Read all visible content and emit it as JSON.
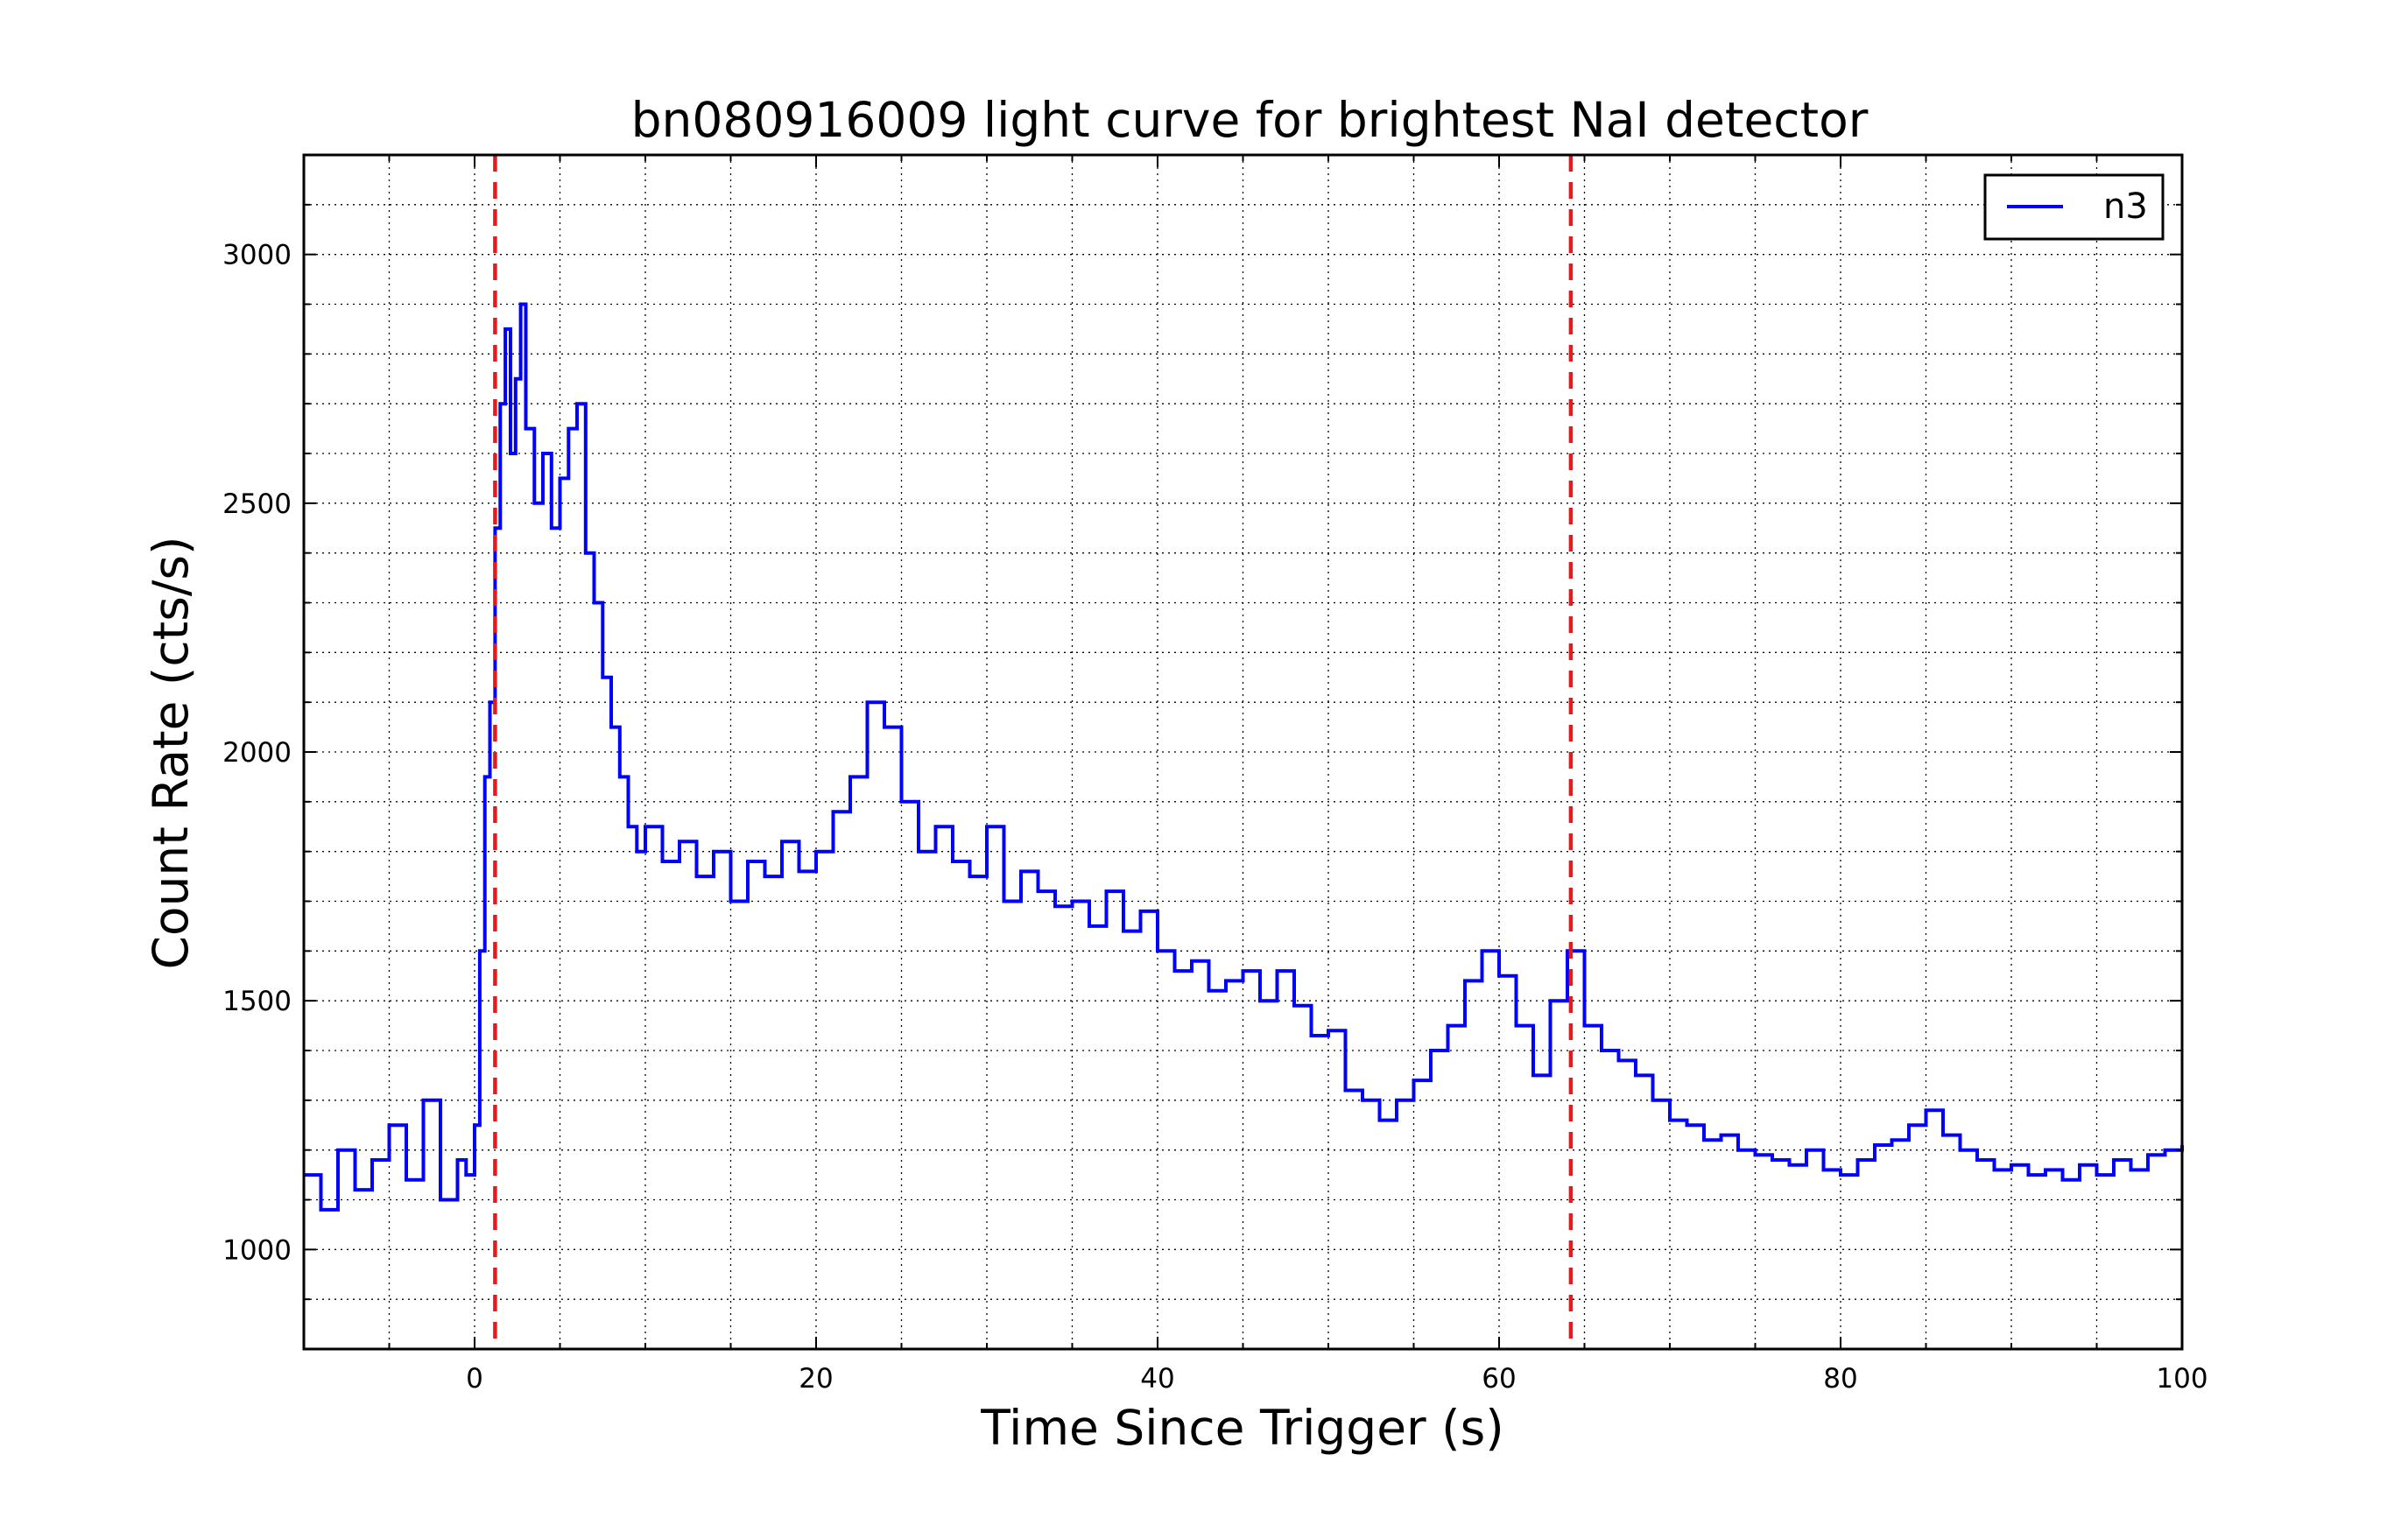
{
  "chart_data": {
    "type": "line",
    "title": "bn080916009 light curve for brightest NaI detector",
    "xlabel": "Time Since Trigger (s)",
    "ylabel": "Count Rate (cts/s)",
    "xlim": [
      -10,
      100
    ],
    "ylim": [
      800,
      3200
    ],
    "x_ticks": [
      0,
      20,
      40,
      60,
      80,
      100
    ],
    "y_ticks": [
      1000,
      1500,
      2000,
      2500,
      3000
    ],
    "x_tick_labels": [
      "0",
      "20",
      "40",
      "60",
      "80",
      "100"
    ],
    "y_tick_labels": [
      "1000",
      "1500",
      "2000",
      "2500",
      "3000"
    ],
    "grid": true,
    "legend_position": "upper-right",
    "colors": {
      "series": "#0000ff",
      "markers": "#e41a1c"
    },
    "series": [
      {
        "name": "n3",
        "x": [
          -10,
          -9,
          -8,
          -7,
          -6,
          -5,
          -4,
          -3,
          -2,
          -1,
          -0.5,
          0,
          0.3,
          0.6,
          0.9,
          1.2,
          1.5,
          1.8,
          2.1,
          2.4,
          2.7,
          3,
          3.5,
          4,
          4.5,
          5,
          5.5,
          6,
          6.5,
          7,
          7.5,
          8,
          8.5,
          9,
          9.5,
          10,
          11,
          12,
          13,
          14,
          15,
          16,
          17,
          18,
          19,
          20,
          21,
          22,
          23,
          24,
          25,
          26,
          27,
          28,
          29,
          30,
          31,
          32,
          33,
          34,
          35,
          36,
          37,
          38,
          39,
          40,
          41,
          42,
          43,
          44,
          45,
          46,
          47,
          48,
          49,
          50,
          51,
          52,
          53,
          54,
          55,
          56,
          57,
          58,
          59,
          60,
          61,
          62,
          63,
          64,
          65,
          66,
          67,
          68,
          69,
          70,
          71,
          72,
          73,
          74,
          75,
          76,
          77,
          78,
          79,
          80,
          81,
          82,
          83,
          84,
          85,
          86,
          87,
          88,
          89,
          90,
          91,
          92,
          93,
          94,
          95,
          96,
          97,
          98,
          99,
          100
        ],
        "y": [
          1150,
          1080,
          1200,
          1120,
          1180,
          1250,
          1140,
          1300,
          1100,
          1180,
          1150,
          1250,
          1600,
          1950,
          2100,
          2450,
          2700,
          2850,
          2600,
          2750,
          2900,
          2650,
          2500,
          2600,
          2450,
          2550,
          2650,
          2700,
          2400,
          2300,
          2150,
          2050,
          1950,
          1850,
          1800,
          1850,
          1780,
          1820,
          1750,
          1800,
          1700,
          1780,
          1750,
          1820,
          1760,
          1800,
          1880,
          1950,
          2100,
          2050,
          1900,
          1800,
          1850,
          1780,
          1750,
          1850,
          1700,
          1760,
          1720,
          1690,
          1700,
          1650,
          1720,
          1640,
          1680,
          1600,
          1560,
          1580,
          1520,
          1540,
          1560,
          1500,
          1560,
          1490,
          1430,
          1440,
          1320,
          1300,
          1260,
          1300,
          1340,
          1400,
          1450,
          1540,
          1600,
          1550,
          1450,
          1350,
          1500,
          1600,
          1450,
          1400,
          1380,
          1350,
          1300,
          1260,
          1250,
          1220,
          1230,
          1200,
          1190,
          1180,
          1170,
          1200,
          1160,
          1150,
          1180,
          1210,
          1220,
          1250,
          1280,
          1230,
          1200,
          1180,
          1160,
          1170,
          1150,
          1160,
          1140,
          1170,
          1150,
          1180,
          1160,
          1190,
          1200,
          1210
        ]
      }
    ],
    "vlines": [
      1.2,
      64.2
    ]
  }
}
